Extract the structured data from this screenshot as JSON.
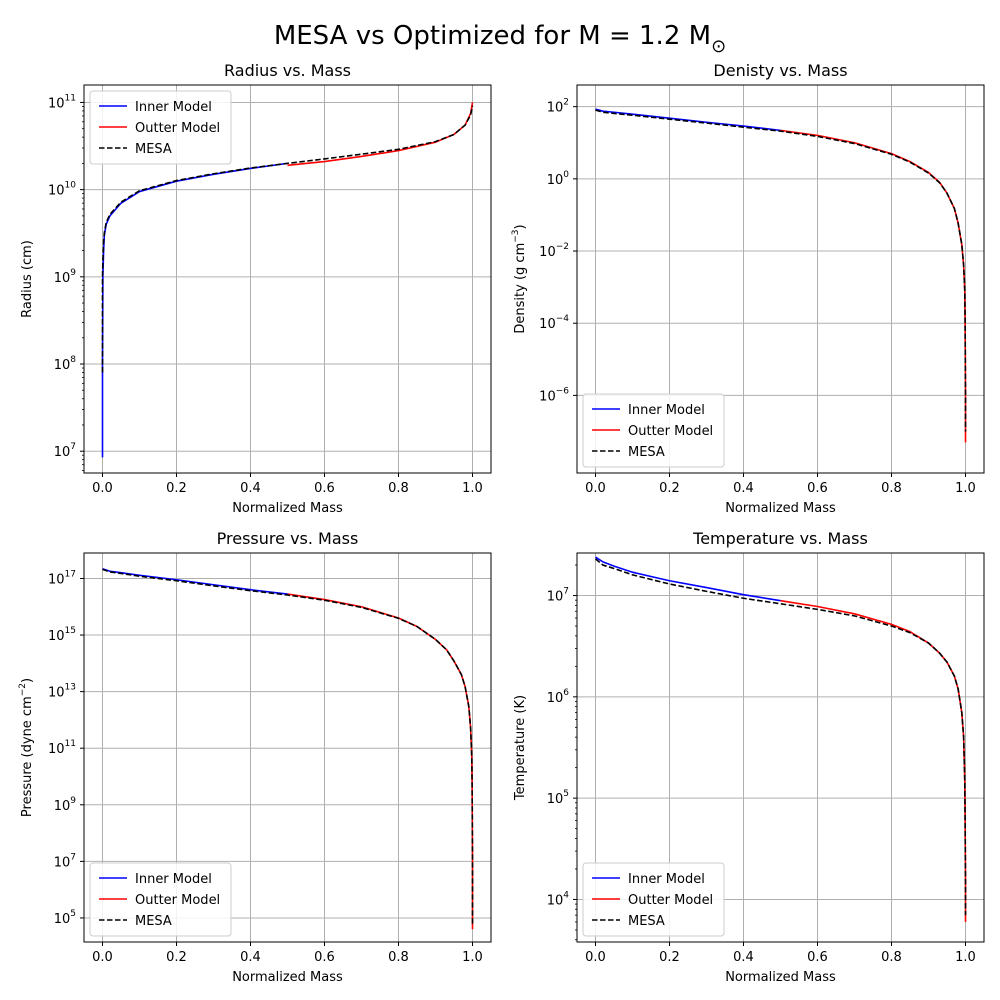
{
  "figure": {
    "title": "MESA vs Optimized for M = 1.2 M",
    "title_symbol": "⊙"
  },
  "colors": {
    "inner": "#0000ff",
    "outer": "#ff0000",
    "mesa": "#000000",
    "grid": "#b0b0b0"
  },
  "chart_data": [
    {
      "type": "line",
      "title": "Radius vs. Mass",
      "xlabel": "Normalized Mass",
      "ylabel": "Radius (cm)",
      "yscale": "log",
      "xlim": [
        -0.05,
        1.05
      ],
      "ylim_log10": [
        6.75,
        11.2
      ],
      "xticks": [
        "0.0",
        "0.2",
        "0.4",
        "0.6",
        "0.8",
        "1.0"
      ],
      "yticks": [
        {
          "base": "10",
          "exp": "7",
          "value": 7
        },
        {
          "base": "10",
          "exp": "8",
          "value": 8
        },
        {
          "base": "10",
          "exp": "9",
          "value": 9
        },
        {
          "base": "10",
          "exp": "10",
          "value": 10
        },
        {
          "base": "10",
          "exp": "11",
          "value": 11
        }
      ],
      "grid": true,
      "legend": "top-left",
      "series": [
        {
          "name": "Inner Model",
          "style": "solid",
          "x": [
            0,
            0,
            0.001,
            0.003,
            0.005,
            0.01,
            0.02,
            0.05,
            0.1,
            0.2,
            0.3,
            0.4,
            0.5
          ],
          "y": [
            8500000.0,
            100000000.0,
            1000000000.0,
            2000000000.0,
            3000000000.0,
            4000000000.0,
            5000000000.0,
            7000000000.0,
            9500000000.0,
            12500000000.0,
            15000000000.0,
            17500000000.0,
            20000000000.0
          ]
        },
        {
          "name": "Outter Model",
          "style": "solid",
          "x": [
            0.5,
            0.6,
            0.7,
            0.8,
            0.9,
            0.95,
            0.98,
            0.995,
            1.0
          ],
          "y": [
            19000000000.0,
            21000000000.0,
            24000000000.0,
            28000000000.0,
            35000000000.0,
            43000000000.0,
            55000000000.0,
            75000000000.0,
            100000000000.0
          ]
        },
        {
          "name": "MESA",
          "style": "dashed",
          "x": [
            0,
            0,
            0.001,
            0.003,
            0.005,
            0.01,
            0.02,
            0.05,
            0.1,
            0.2,
            0.3,
            0.4,
            0.5,
            0.6,
            0.7,
            0.8,
            0.9,
            0.95,
            0.98,
            0.995,
            1.0
          ],
          "y": [
            80000000.0,
            1000000000.0,
            1500000000.0,
            2500000000.0,
            3200000000.0,
            4200000000.0,
            5200000000.0,
            7200000000.0,
            9700000000.0,
            12700000000.0,
            15200000000.0,
            17700000000.0,
            20000000000.0,
            22500000000.0,
            25500000000.0,
            29000000000.0,
            35500000000.0,
            43000000000.0,
            55000000000.0,
            72000000000.0,
            92000000000.0
          ]
        }
      ]
    },
    {
      "type": "line",
      "title": "Denisty vs. Mass",
      "xlabel": "Normalized Mass",
      "ylabel": "Density (g cm",
      "ylabel_sup": "−3",
      "ylabel_close": ")",
      "yscale": "log",
      "xlim": [
        -0.05,
        1.05
      ],
      "ylim_log10": [
        -8.15,
        2.6
      ],
      "xticks": [
        "0.0",
        "0.2",
        "0.4",
        "0.6",
        "0.8",
        "1.0"
      ],
      "yticks": [
        {
          "base": "10",
          "exp": "−6",
          "value": -6
        },
        {
          "base": "10",
          "exp": "−4",
          "value": -4
        },
        {
          "base": "10",
          "exp": "−2",
          "value": -2
        },
        {
          "base": "10",
          "exp": "0",
          "value": 0
        },
        {
          "base": "10",
          "exp": "2",
          "value": 2
        }
      ],
      "grid": true,
      "legend": "bottom-left",
      "series": [
        {
          "name": "Inner Model",
          "style": "solid",
          "x": [
            0,
            0.02,
            0.05,
            0.1,
            0.2,
            0.3,
            0.4,
            0.5
          ],
          "y": [
            85,
            75,
            70,
            62,
            48,
            37,
            29,
            22
          ]
        },
        {
          "name": "Outter Model",
          "style": "solid",
          "x": [
            0.5,
            0.6,
            0.7,
            0.8,
            0.85,
            0.9,
            0.93,
            0.95,
            0.97,
            0.98,
            0.99,
            0.995,
            0.998,
            0.999,
            1.0,
            1.0
          ],
          "y": [
            22,
            16,
            10,
            5,
            3,
            1.5,
            0.8,
            0.4,
            0.15,
            0.06,
            0.015,
            0.004,
            0.0008,
            0.0001,
            1e-06,
            5e-08
          ]
        },
        {
          "name": "MESA",
          "style": "dashed",
          "x": [
            0,
            0.02,
            0.05,
            0.1,
            0.2,
            0.3,
            0.4,
            0.5,
            0.6,
            0.7,
            0.8,
            0.85,
            0.9,
            0.93,
            0.95,
            0.97,
            0.98,
            0.99,
            0.995,
            0.998,
            0.999,
            1.0,
            1.0
          ],
          "y": [
            80,
            70,
            65,
            58,
            45,
            35,
            27,
            21,
            15,
            9.5,
            4.8,
            2.9,
            1.45,
            0.78,
            0.4,
            0.15,
            0.06,
            0.015,
            0.004,
            0.0008,
            0.0001,
            1e-06,
            1e-07
          ]
        }
      ]
    },
    {
      "type": "line",
      "title": "Pressure vs. Mass",
      "xlabel": "Normalized Mass",
      "ylabel": "Pressure (dyne cm",
      "ylabel_sup": "−2",
      "ylabel_close": ")",
      "yscale": "log",
      "xlim": [
        -0.05,
        1.05
      ],
      "ylim_log10": [
        4.15,
        17.9
      ],
      "xticks": [
        "0.0",
        "0.2",
        "0.4",
        "0.6",
        "0.8",
        "1.0"
      ],
      "yticks": [
        {
          "base": "10",
          "exp": "5",
          "value": 5
        },
        {
          "base": "10",
          "exp": "7",
          "value": 7
        },
        {
          "base": "10",
          "exp": "9",
          "value": 9
        },
        {
          "base": "10",
          "exp": "11",
          "value": 11
        },
        {
          "base": "10",
          "exp": "13",
          "value": 13
        },
        {
          "base": "10",
          "exp": "15",
          "value": 15
        },
        {
          "base": "10",
          "exp": "17",
          "value": 17
        }
      ],
      "grid": true,
      "legend": "bottom-left",
      "series": [
        {
          "name": "Inner Model",
          "style": "solid",
          "x": [
            0,
            0.02,
            0.05,
            0.1,
            0.2,
            0.3,
            0.4,
            0.5
          ],
          "y": [
            2.2e+17,
            1.8e+17,
            1.6e+17,
            1.3e+17,
            9e+16,
            6e+16,
            4e+16,
            2.8e+16
          ]
        },
        {
          "name": "Outter Model",
          "style": "solid",
          "x": [
            0.5,
            0.6,
            0.7,
            0.8,
            0.85,
            0.9,
            0.93,
            0.95,
            0.97,
            0.98,
            0.99,
            0.995,
            0.998,
            0.999,
            1.0,
            1.0
          ],
          "y": [
            2.8e+16,
            1.8e+16,
            1e+16,
            4000000000000000.0,
            2000000000000000.0,
            700000000000000.0,
            300000000000000.0,
            120000000000000.0,
            40000000000000.0,
            15000000000000.0,
            3000000000000.0,
            500000000000.0,
            50000000000.0,
            5000000000.0,
            10000000.0,
            40000.0
          ]
        },
        {
          "name": "MESA",
          "style": "dashed",
          "x": [
            0,
            0.02,
            0.05,
            0.1,
            0.2,
            0.3,
            0.4,
            0.5,
            0.6,
            0.7,
            0.8,
            0.85,
            0.9,
            0.93,
            0.95,
            0.97,
            0.98,
            0.99,
            0.995,
            0.998,
            0.999,
            1.0,
            1.0
          ],
          "y": [
            2.1e+17,
            1.7e+17,
            1.5e+17,
            1.2e+17,
            8.3e+16,
            5.5e+16,
            3.7e+16,
            2.6e+16,
            1.7e+16,
            9500000000000000.0,
            3900000000000000.0,
            2000000000000000.0,
            700000000000000.0,
            300000000000000.0,
            120000000000000.0,
            40000000000000.0,
            15000000000000.0,
            3000000000000.0,
            500000000000.0,
            50000000000.0,
            5000000000.0,
            10000000.0,
            60000.0
          ]
        }
      ]
    },
    {
      "type": "line",
      "title": "Temperature vs. Mass",
      "xlabel": "Normalized Mass",
      "ylabel": "Temperature (K)",
      "yscale": "log",
      "xlim": [
        -0.05,
        1.05
      ],
      "ylim_log10": [
        3.58,
        7.42
      ],
      "xticks": [
        "0.0",
        "0.2",
        "0.4",
        "0.6",
        "0.8",
        "1.0"
      ],
      "yticks": [
        {
          "base": "10",
          "exp": "4",
          "value": 4
        },
        {
          "base": "10",
          "exp": "5",
          "value": 5
        },
        {
          "base": "10",
          "exp": "6",
          "value": 6
        },
        {
          "base": "10",
          "exp": "7",
          "value": 7
        }
      ],
      "grid": true,
      "legend": "bottom-left",
      "series": [
        {
          "name": "Inner Model",
          "style": "solid",
          "x": [
            0,
            0.02,
            0.05,
            0.1,
            0.2,
            0.3,
            0.4,
            0.5
          ],
          "y": [
            24000000.0,
            21500000.0,
            19500000.0,
            17000000.0,
            14000000.0,
            12000000.0,
            10200000.0,
            8900000.0
          ]
        },
        {
          "name": "Outter Model",
          "style": "solid",
          "x": [
            0.5,
            0.6,
            0.7,
            0.8,
            0.85,
            0.9,
            0.93,
            0.95,
            0.97,
            0.98,
            0.99,
            0.995,
            0.998,
            0.999,
            1.0,
            1.0
          ],
          "y": [
            8900000.0,
            7800000.0,
            6600000.0,
            5200000.0,
            4400000.0,
            3400000.0,
            2700000.0,
            2200000.0,
            1600000.0,
            1200000.0,
            700000.0,
            400000.0,
            150000.0,
            60000.0,
            15000.0,
            6000.0
          ]
        },
        {
          "name": "MESA",
          "style": "dashed",
          "x": [
            0,
            0.02,
            0.05,
            0.1,
            0.2,
            0.3,
            0.4,
            0.5,
            0.6,
            0.7,
            0.8,
            0.85,
            0.9,
            0.93,
            0.95,
            0.97,
            0.98,
            0.99,
            0.995,
            0.998,
            0.999,
            1.0,
            1.0
          ],
          "y": [
            23000000.0,
            20000000.0,
            18500000.0,
            16000000.0,
            13000000.0,
            11000000.0,
            9400000.0,
            8300000.0,
            7300000.0,
            6300000.0,
            5000000.0,
            4300000.0,
            3400000.0,
            2700000.0,
            2200000.0,
            1600000.0,
            1200000.0,
            700000.0,
            400000.0,
            150000.0,
            60000.0,
            15000.0,
            7000.0
          ]
        }
      ]
    }
  ]
}
